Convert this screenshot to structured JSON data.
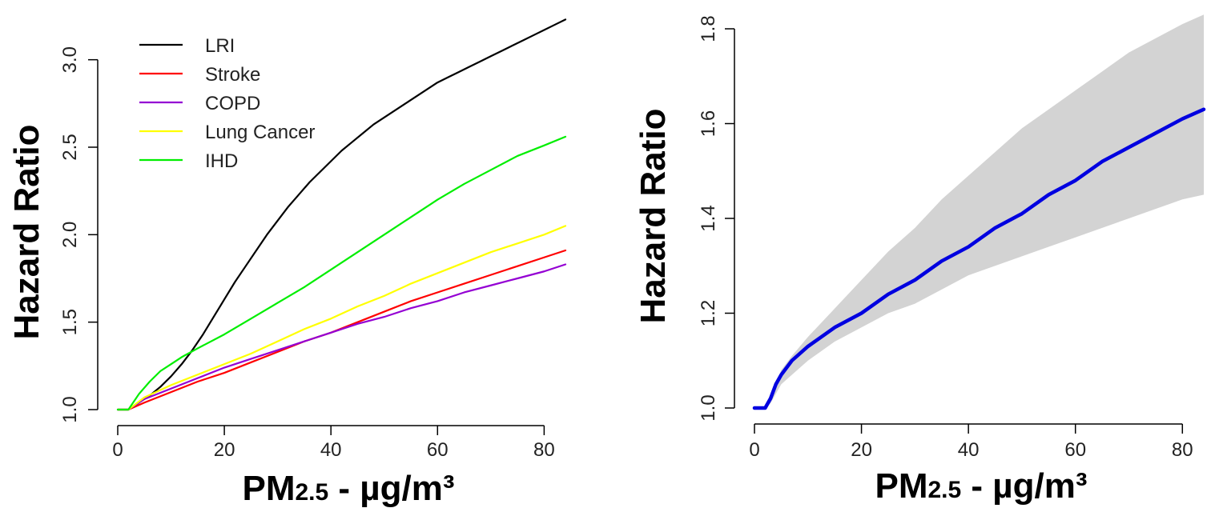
{
  "chart_data": [
    {
      "type": "line",
      "xlabel": {
        "main": "PM",
        "sub": "2.5",
        "rest": " - µg/m³"
      },
      "ylabel": "Hazard Ratio",
      "xlim": [
        0,
        84
      ],
      "ylim": [
        1.0,
        3.25
      ],
      "xticks": [
        0,
        20,
        40,
        60,
        80
      ],
      "yticks": [
        1.0,
        1.5,
        2.0,
        2.5,
        3.0
      ],
      "ytick_labels": [
        "1.0",
        "1.5",
        "2.0",
        "2.5",
        "3.0"
      ],
      "legend_position": "top-left",
      "series": [
        {
          "name": "LRI",
          "color": "#000000",
          "x": [
            0,
            2,
            4,
            6,
            8,
            10,
            12,
            14,
            16,
            18,
            20,
            22,
            24,
            26,
            28,
            30,
            32,
            34,
            36,
            38,
            40,
            42,
            44,
            46,
            48,
            50,
            52,
            54,
            56,
            58,
            60,
            62,
            64,
            66,
            68,
            70,
            72,
            74,
            76,
            78,
            80,
            82,
            84
          ],
          "y": [
            1.0,
            1.0,
            1.04,
            1.08,
            1.13,
            1.19,
            1.26,
            1.34,
            1.43,
            1.53,
            1.63,
            1.73,
            1.82,
            1.91,
            2.0,
            2.08,
            2.16,
            2.23,
            2.3,
            2.36,
            2.42,
            2.48,
            2.53,
            2.58,
            2.63,
            2.67,
            2.71,
            2.75,
            2.79,
            2.83,
            2.87,
            2.9,
            2.93,
            2.96,
            2.99,
            3.02,
            3.05,
            3.08,
            3.11,
            3.14,
            3.17,
            3.2,
            3.23
          ]
        },
        {
          "name": "Stroke",
          "color": "#ff0000",
          "x": [
            0,
            2,
            5,
            10,
            15,
            20,
            25,
            30,
            35,
            40,
            45,
            50,
            55,
            60,
            65,
            70,
            75,
            80,
            84
          ],
          "y": [
            1.0,
            1.0,
            1.04,
            1.1,
            1.16,
            1.21,
            1.27,
            1.33,
            1.39,
            1.44,
            1.5,
            1.56,
            1.62,
            1.67,
            1.72,
            1.77,
            1.82,
            1.87,
            1.91
          ]
        },
        {
          "name": "COPD",
          "color": "#9400d3",
          "x": [
            0,
            2,
            5,
            10,
            15,
            20,
            25,
            30,
            35,
            40,
            45,
            50,
            55,
            60,
            65,
            70,
            75,
            80,
            84
          ],
          "y": [
            1.0,
            1.0,
            1.06,
            1.12,
            1.18,
            1.24,
            1.29,
            1.34,
            1.39,
            1.44,
            1.49,
            1.53,
            1.58,
            1.62,
            1.67,
            1.71,
            1.75,
            1.79,
            1.83
          ]
        },
        {
          "name": "Lung Cancer",
          "color": "#ffff00",
          "x": [
            0,
            2,
            5,
            10,
            15,
            20,
            25,
            30,
            35,
            40,
            45,
            50,
            55,
            60,
            65,
            70,
            75,
            80,
            84
          ],
          "y": [
            1.0,
            1.0,
            1.07,
            1.14,
            1.2,
            1.26,
            1.32,
            1.39,
            1.46,
            1.52,
            1.59,
            1.65,
            1.72,
            1.78,
            1.84,
            1.9,
            1.95,
            2.0,
            2.05
          ]
        },
        {
          "name": "IHD",
          "color": "#00ee00",
          "x": [
            0,
            2,
            4,
            6,
            8,
            10,
            12,
            15,
            20,
            25,
            30,
            35,
            40,
            45,
            50,
            55,
            60,
            65,
            70,
            75,
            80,
            84
          ],
          "y": [
            1.0,
            1.0,
            1.09,
            1.16,
            1.22,
            1.26,
            1.3,
            1.35,
            1.43,
            1.52,
            1.61,
            1.7,
            1.8,
            1.9,
            2.0,
            2.1,
            2.2,
            2.29,
            2.37,
            2.45,
            2.51,
            2.56
          ]
        }
      ]
    },
    {
      "type": "area",
      "xlabel": {
        "main": "PM",
        "sub": "2.5",
        "rest": " - µg/m³"
      },
      "ylabel": "Hazard Ratio",
      "xlim": [
        0,
        84
      ],
      "ylim": [
        1.0,
        1.8
      ],
      "xticks": [
        0,
        20,
        40,
        60,
        80
      ],
      "yticks": [
        1.0,
        1.2,
        1.4,
        1.6,
        1.8
      ],
      "ytick_labels": [
        "1.0",
        "1.2",
        "1.4",
        "1.6",
        "1.8"
      ],
      "band_color": "#d3d3d3",
      "line_color": "#0000e0",
      "x": [
        0,
        2,
        3,
        4,
        5,
        7,
        10,
        15,
        20,
        25,
        30,
        35,
        40,
        45,
        50,
        55,
        60,
        65,
        70,
        75,
        80,
        84
      ],
      "y": [
        1.0,
        1.0,
        1.02,
        1.05,
        1.07,
        1.1,
        1.13,
        1.17,
        1.2,
        1.24,
        1.27,
        1.31,
        1.34,
        1.38,
        1.41,
        1.45,
        1.48,
        1.52,
        1.55,
        1.58,
        1.61,
        1.63
      ],
      "upper": [
        1.0,
        1.0,
        1.02,
        1.05,
        1.08,
        1.11,
        1.15,
        1.21,
        1.27,
        1.33,
        1.38,
        1.44,
        1.49,
        1.54,
        1.59,
        1.63,
        1.67,
        1.71,
        1.75,
        1.78,
        1.81,
        1.83
      ],
      "lower": [
        1.0,
        1.0,
        1.01,
        1.03,
        1.05,
        1.07,
        1.1,
        1.14,
        1.17,
        1.2,
        1.22,
        1.25,
        1.28,
        1.3,
        1.32,
        1.34,
        1.36,
        1.38,
        1.4,
        1.42,
        1.44,
        1.45
      ]
    }
  ]
}
